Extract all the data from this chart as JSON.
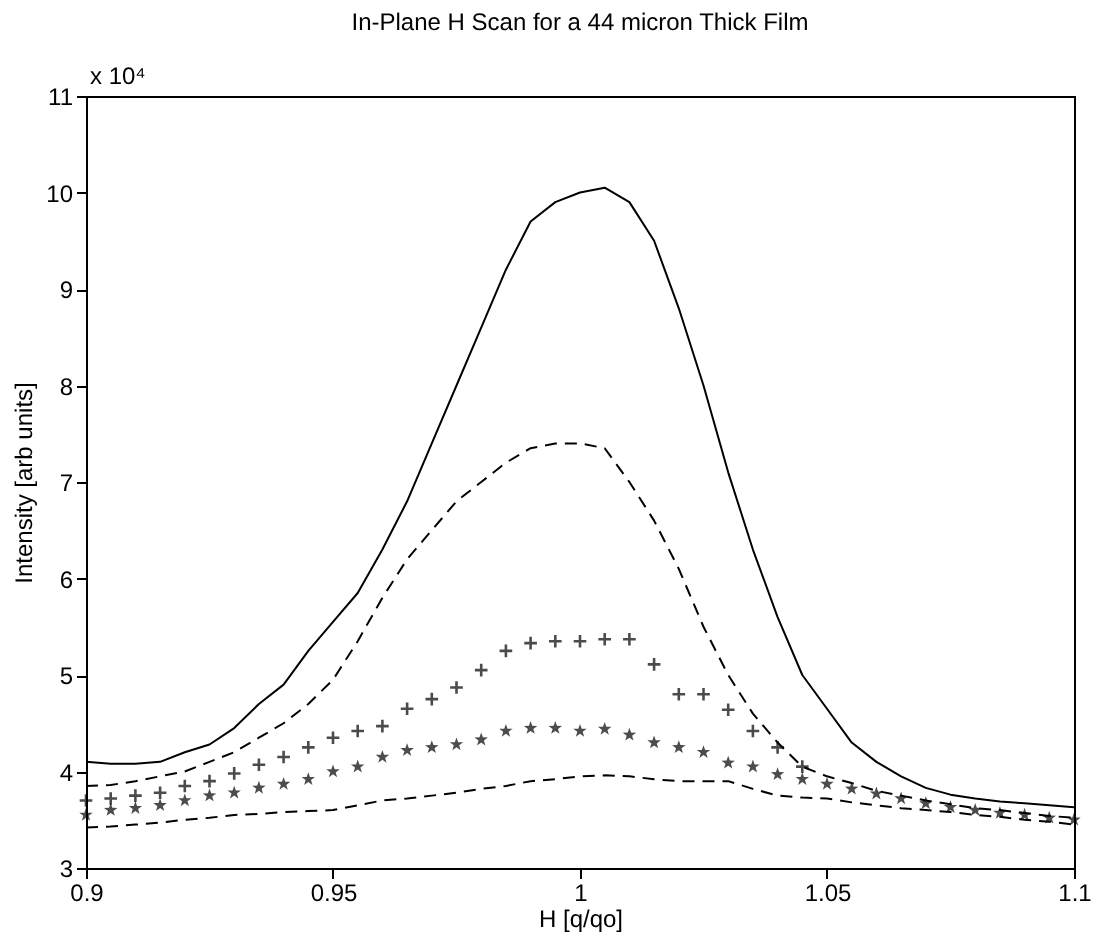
{
  "chart_data": {
    "type": "line",
    "title": "In-Plane H  Scan for a 44 micron Thick Film",
    "xlabel": "H [q/qo]",
    "ylabel": "Intensity [arb units]",
    "annotations": [
      "x 10⁴"
    ],
    "x": [
      0.9,
      0.905,
      0.91,
      0.915,
      0.92,
      0.925,
      0.93,
      0.935,
      0.94,
      0.945,
      0.95,
      0.955,
      0.96,
      0.965,
      0.97,
      0.975,
      0.98,
      0.985,
      0.99,
      0.995,
      1.0,
      1.005,
      1.01,
      1.015,
      1.02,
      1.025,
      1.03,
      1.035,
      1.04,
      1.045,
      1.05,
      1.055,
      1.06,
      1.065,
      1.07,
      1.075,
      1.08,
      1.085,
      1.09,
      1.095,
      1.1
    ],
    "series": [
      {
        "color": "#000000",
        "line_style": "solid",
        "marker": "none",
        "values": [
          4.1,
          4.08,
          4.08,
          4.1,
          4.2,
          4.28,
          4.45,
          4.7,
          4.9,
          5.25,
          5.55,
          5.85,
          6.3,
          6.8,
          7.4,
          8.0,
          8.6,
          9.2,
          9.7,
          9.9,
          10.0,
          10.05,
          9.9,
          9.5,
          8.8,
          8.0,
          7.1,
          6.3,
          5.6,
          5.0,
          4.65,
          4.3,
          4.1,
          3.95,
          3.83,
          3.76,
          3.72,
          3.69,
          3.67,
          3.65,
          3.63
        ]
      },
      {
        "color": "#000000",
        "line_style": "dashed",
        "marker": "none",
        "values": [
          3.85,
          3.86,
          3.9,
          3.95,
          4.0,
          4.1,
          4.2,
          4.35,
          4.5,
          4.7,
          4.95,
          5.35,
          5.8,
          6.2,
          6.5,
          6.8,
          7.0,
          7.2,
          7.35,
          7.4,
          7.4,
          7.35,
          7.0,
          6.6,
          6.1,
          5.5,
          5.0,
          4.6,
          4.3,
          4.05,
          3.95,
          3.88,
          3.8,
          3.75,
          3.7,
          3.66,
          3.62,
          3.6,
          3.57,
          3.54,
          3.52
        ]
      },
      {
        "type": "scatter",
        "color": "#000000",
        "marker": "cross",
        "values": [
          3.7,
          3.72,
          3.75,
          3.78,
          3.85,
          3.9,
          3.98,
          4.07,
          4.15,
          4.25,
          4.35,
          4.42,
          4.47,
          4.65,
          4.75,
          4.87,
          5.05,
          5.25,
          5.33,
          5.35,
          5.35,
          5.37,
          5.37,
          5.11,
          4.8,
          4.8,
          4.64,
          4.42,
          4.25,
          4.05,
          null,
          null,
          null,
          null,
          null,
          null,
          null,
          null,
          null,
          null,
          null
        ]
      },
      {
        "type": "scatter",
        "color": "#000000",
        "marker": "star",
        "values": [
          3.55,
          3.6,
          3.62,
          3.65,
          3.7,
          3.75,
          3.78,
          3.83,
          3.87,
          3.92,
          4.0,
          4.05,
          4.15,
          4.22,
          4.25,
          4.28,
          4.33,
          4.42,
          4.45,
          4.45,
          4.42,
          4.44,
          4.38,
          4.3,
          4.25,
          4.2,
          4.09,
          4.05,
          3.97,
          3.92,
          3.87,
          3.82,
          3.77,
          3.72,
          3.67,
          3.63,
          3.6,
          3.57,
          3.55,
          3.52,
          3.5
        ]
      },
      {
        "color": "#000000",
        "line_style": "dashed",
        "marker": "none",
        "values": [
          3.42,
          3.43,
          3.45,
          3.47,
          3.5,
          3.52,
          3.55,
          3.56,
          3.58,
          3.59,
          3.6,
          3.65,
          3.7,
          3.72,
          3.75,
          3.78,
          3.82,
          3.85,
          3.9,
          3.92,
          3.95,
          3.96,
          3.95,
          3.92,
          3.9,
          3.9,
          3.9,
          3.82,
          3.75,
          3.73,
          3.72,
          3.68,
          3.65,
          3.62,
          3.6,
          3.58,
          3.55,
          3.53,
          3.5,
          3.48,
          3.45
        ]
      }
    ],
    "xlim": [
      0.9,
      1.1
    ],
    "xticks": [
      0.9,
      0.95,
      1,
      1.05,
      1.1
    ],
    "ylim": [
      3,
      11
    ],
    "yticks": [
      3,
      4,
      5,
      6,
      7,
      8,
      9,
      10,
      11
    ],
    "grid": false
  }
}
